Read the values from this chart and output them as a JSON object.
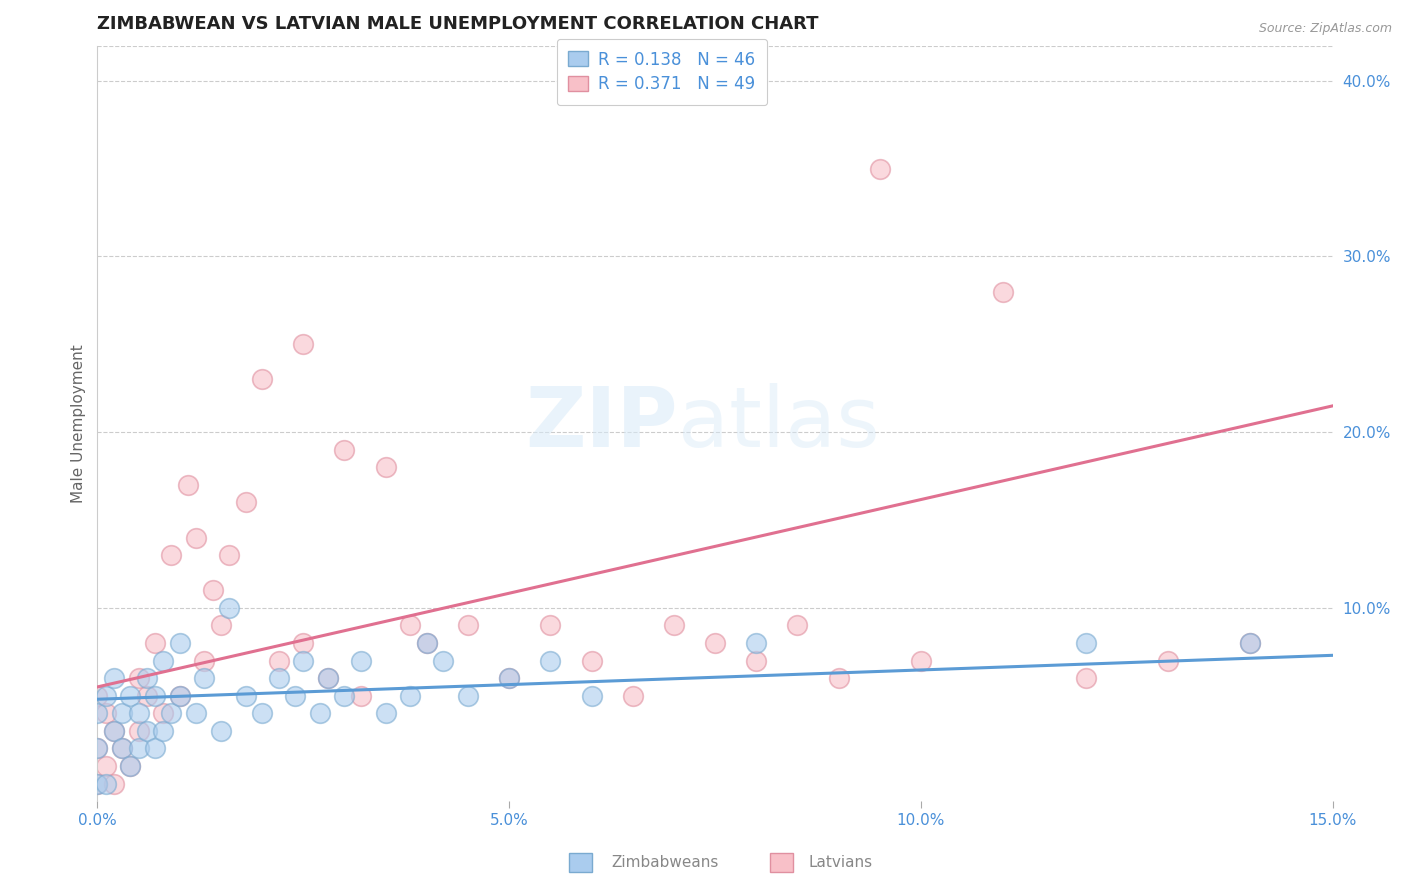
{
  "title": "ZIMBABWEAN VS LATVIAN MALE UNEMPLOYMENT CORRELATION CHART",
  "source": "Source: ZipAtlas.com",
  "ylabel": "Male Unemployment",
  "xlim": [
    0.0,
    0.15
  ],
  "ylim": [
    -0.01,
    0.42
  ],
  "xticks": [
    0.0,
    0.05,
    0.1,
    0.15
  ],
  "xtick_labels": [
    "0.0%",
    "5.0%",
    "10.0%",
    "15.0%"
  ],
  "yticks_right": [
    0.1,
    0.2,
    0.3,
    0.4
  ],
  "ytick_labels_right": [
    "10.0%",
    "20.0%",
    "30.0%",
    "40.0%"
  ],
  "background_color": "#ffffff",
  "grid_color": "#cccccc",
  "zimbabwe_line_color": "#5b9bd5",
  "latvian_line_color": "#e07090",
  "zimbabwe_scatter_face": "#aaccee",
  "zimbabwe_scatter_edge": "#7aaad0",
  "latvian_scatter_face": "#f8c0c8",
  "latvian_scatter_edge": "#e090a0",
  "legend_R_zimbabwe": "0.138",
  "legend_N_zimbabwe": "46",
  "legend_R_latvian": "0.371",
  "legend_N_latvian": "49",
  "legend_label_zimbabwe": "Zimbabweans",
  "legend_label_latvian": "Latvians",
  "title_fontsize": 13,
  "axis_label_fontsize": 11,
  "tick_fontsize": 11,
  "legend_fontsize": 12,
  "zimbabwe_line_x": [
    0.0,
    0.15
  ],
  "zimbabwe_line_y": [
    0.048,
    0.073
  ],
  "latvian_line_x": [
    0.0,
    0.15
  ],
  "latvian_line_y": [
    0.055,
    0.215
  ],
  "zimbabwe_points_x": [
    0.0,
    0.0,
    0.0,
    0.001,
    0.001,
    0.002,
    0.002,
    0.003,
    0.003,
    0.004,
    0.004,
    0.005,
    0.005,
    0.006,
    0.006,
    0.007,
    0.007,
    0.008,
    0.008,
    0.009,
    0.01,
    0.01,
    0.012,
    0.013,
    0.015,
    0.016,
    0.018,
    0.02,
    0.022,
    0.024,
    0.025,
    0.027,
    0.028,
    0.03,
    0.032,
    0.035,
    0.038,
    0.04,
    0.042,
    0.045,
    0.05,
    0.055,
    0.06,
    0.08,
    0.12,
    0.14
  ],
  "zimbabwe_points_y": [
    0.0,
    0.02,
    0.04,
    0.0,
    0.05,
    0.03,
    0.06,
    0.02,
    0.04,
    0.01,
    0.05,
    0.02,
    0.04,
    0.03,
    0.06,
    0.02,
    0.05,
    0.03,
    0.07,
    0.04,
    0.05,
    0.08,
    0.04,
    0.06,
    0.03,
    0.1,
    0.05,
    0.04,
    0.06,
    0.05,
    0.07,
    0.04,
    0.06,
    0.05,
    0.07,
    0.04,
    0.05,
    0.08,
    0.07,
    0.05,
    0.06,
    0.07,
    0.05,
    0.08,
    0.08,
    0.08
  ],
  "latvian_points_x": [
    0.0,
    0.0,
    0.0,
    0.001,
    0.001,
    0.002,
    0.002,
    0.003,
    0.004,
    0.005,
    0.005,
    0.006,
    0.007,
    0.008,
    0.009,
    0.01,
    0.011,
    0.012,
    0.013,
    0.014,
    0.015,
    0.016,
    0.018,
    0.02,
    0.022,
    0.025,
    0.025,
    0.028,
    0.03,
    0.032,
    0.035,
    0.038,
    0.04,
    0.045,
    0.05,
    0.055,
    0.06,
    0.065,
    0.07,
    0.075,
    0.08,
    0.085,
    0.09,
    0.095,
    0.1,
    0.11,
    0.12,
    0.13,
    0.14
  ],
  "latvian_points_y": [
    0.0,
    0.02,
    0.05,
    0.01,
    0.04,
    0.0,
    0.03,
    0.02,
    0.01,
    0.03,
    0.06,
    0.05,
    0.08,
    0.04,
    0.13,
    0.05,
    0.17,
    0.14,
    0.07,
    0.11,
    0.09,
    0.13,
    0.16,
    0.23,
    0.07,
    0.25,
    0.08,
    0.06,
    0.19,
    0.05,
    0.18,
    0.09,
    0.08,
    0.09,
    0.06,
    0.09,
    0.07,
    0.05,
    0.09,
    0.08,
    0.07,
    0.09,
    0.06,
    0.35,
    0.07,
    0.28,
    0.06,
    0.07,
    0.08
  ]
}
